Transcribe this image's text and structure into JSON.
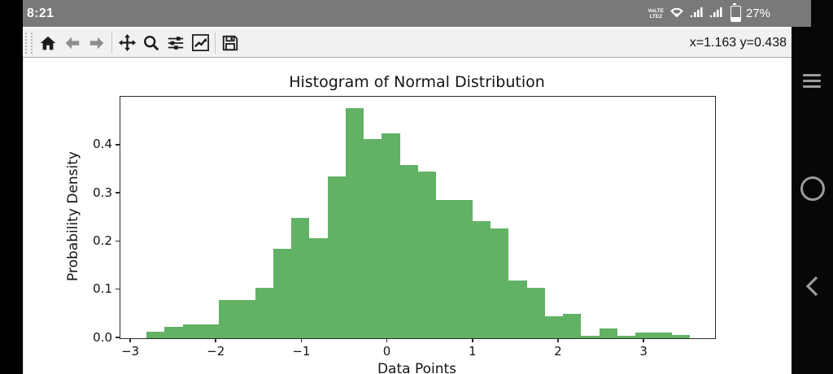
{
  "status_bar": {
    "time": "8:21",
    "network_label_top": "VoLTE",
    "network_label_bottom": "LTE2",
    "battery_percent": "27%"
  },
  "toolbar": {
    "coords_readout": "x=1.163 y=0.438",
    "buttons": [
      {
        "name": "home"
      },
      {
        "name": "back"
      },
      {
        "name": "forward"
      },
      {
        "name": "pan"
      },
      {
        "name": "zoom-to-rect"
      },
      {
        "name": "configure-subplots"
      },
      {
        "name": "customize-plot"
      },
      {
        "name": "save"
      }
    ]
  },
  "nav_bar": {
    "buttons": [
      {
        "name": "recents-menu"
      },
      {
        "name": "home"
      },
      {
        "name": "back"
      }
    ]
  },
  "colors": {
    "status_bar_bg": "#797979",
    "toolbar_bg": "#f1f1f1",
    "nav_bar_bg": "#070707",
    "bar_green": "#62b266"
  },
  "chart_data": {
    "type": "bar",
    "subtype": "histogram",
    "title": "Histogram of Normal Distribution",
    "xlabel": "Data Points",
    "ylabel": "Probability Density",
    "xlim": [
      -3.124,
      3.826
    ],
    "ylim": [
      0,
      0.5008
    ],
    "grid": false,
    "legend": "none",
    "bar_color": "#62b266",
    "bins": {
      "start": -2.82,
      "width": 0.2117,
      "count": 30
    },
    "densities": [
      0.014,
      0.024,
      0.029,
      0.029,
      0.08,
      0.08,
      0.105,
      0.186,
      0.25,
      0.208,
      0.336,
      0.477,
      0.413,
      0.425,
      0.359,
      0.346,
      0.287,
      0.287,
      0.242,
      0.228,
      0.119,
      0.105,
      0.046,
      0.051,
      0.005,
      0.021,
      0.005,
      0.011,
      0.011,
      0.007
    ],
    "xticks": [
      {
        "v": -3,
        "label": "−3"
      },
      {
        "v": -2,
        "label": "−2"
      },
      {
        "v": -1,
        "label": "−1"
      },
      {
        "v": 0,
        "label": "0"
      },
      {
        "v": 1,
        "label": "1"
      },
      {
        "v": 2,
        "label": "2"
      },
      {
        "v": 3,
        "label": "3"
      }
    ],
    "yticks": [
      {
        "v": 0.0,
        "label": "0.0"
      },
      {
        "v": 0.1,
        "label": "0.1"
      },
      {
        "v": 0.2,
        "label": "0.2"
      },
      {
        "v": 0.3,
        "label": "0.3"
      },
      {
        "v": 0.4,
        "label": "0.4"
      }
    ]
  }
}
